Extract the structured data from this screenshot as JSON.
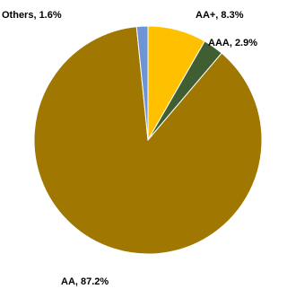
{
  "chart_data": {
    "type": "pie",
    "start_angle_deg": 0,
    "direction": "clockwise",
    "slices": [
      {
        "label": "AA+",
        "value": 8.3,
        "color": "#FFC000",
        "text": "AA+, 8.3%"
      },
      {
        "label": "AAA",
        "value": 2.9,
        "color": "#3F5F32",
        "text": "AAA, 2.9%"
      },
      {
        "label": "AA",
        "value": 87.2,
        "color": "#A07700",
        "text": "AA, 87.2%"
      },
      {
        "label": "Others",
        "value": 1.6,
        "color": "#6F94D6",
        "text": "Others, 1.6%"
      }
    ]
  }
}
